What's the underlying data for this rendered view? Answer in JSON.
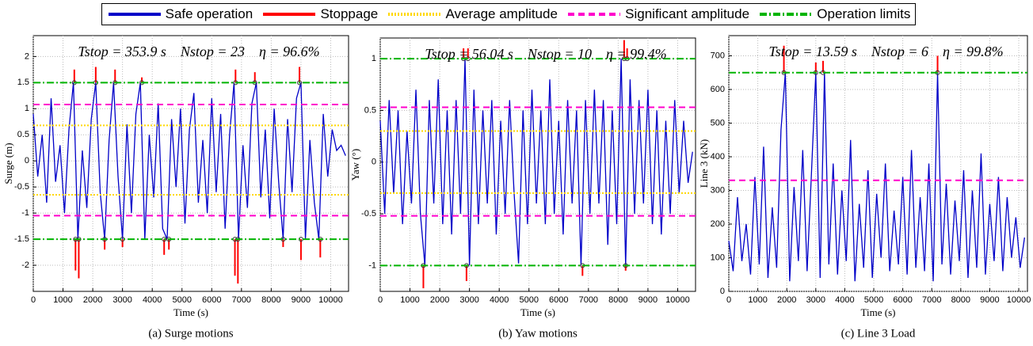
{
  "chart_data": [
    {
      "type": "line",
      "annotation": "Tstop = 353.9 s    Nstop = 23    η = 96.6%",
      "caption": "(a) Surge motions",
      "xlabel": "Time (s)",
      "ylabel": "Surge (m)",
      "xlim": [
        0,
        10600
      ],
      "xticks": [
        0,
        1000,
        2000,
        3000,
        4000,
        5000,
        6000,
        7000,
        8000,
        9000,
        10000
      ],
      "ylim": [
        -2.5,
        2.4
      ],
      "yticks": [
        -2,
        -1.5,
        -1,
        -0.5,
        0,
        0.5,
        1,
        1.5,
        2
      ],
      "grid": true,
      "series": [
        {
          "name": "Safe operation",
          "color": "#0000c8",
          "dash": "solid",
          "x": [
            0,
            150,
            300,
            450,
            600,
            750,
            900,
            1050,
            1200,
            1350,
            1500,
            1650,
            1800,
            1950,
            2100,
            2250,
            2400,
            2550,
            2700,
            2850,
            3000,
            3150,
            3300,
            3450,
            3600,
            3750,
            3900,
            4050,
            4200,
            4350,
            4500,
            4650,
            4800,
            4950,
            5100,
            5250,
            5400,
            5550,
            5700,
            5850,
            6000,
            6150,
            6300,
            6450,
            6600,
            6750,
            6900,
            7050,
            7200,
            7350,
            7500,
            7650,
            7800,
            7950,
            8100,
            8250,
            8400,
            8550,
            8700,
            8850,
            9000,
            9150,
            9300,
            9450,
            9600,
            9750,
            9900,
            10050,
            10200,
            10350,
            10500
          ],
          "values": [
            0.9,
            -0.3,
            0.5,
            -0.8,
            1.2,
            -0.4,
            0.3,
            -1.0,
            0.6,
            1.5,
            -1.5,
            0.2,
            -0.9,
            0.8,
            1.5,
            -0.6,
            -1.5,
            0.4,
            1.5,
            -0.3,
            -1.5,
            0.7,
            -1.0,
            0.9,
            1.5,
            -1.5,
            0.5,
            -0.7,
            1.1,
            -1.3,
            -1.5,
            0.8,
            -0.5,
            1.0,
            -1.2,
            0.6,
            1.3,
            -0.8,
            0.4,
            -1.0,
            1.2,
            -0.6,
            0.9,
            -1.3,
            0.5,
            1.5,
            -1.5,
            0.3,
            -0.9,
            1.1,
            1.5,
            -0.7,
            0.6,
            -1.1,
            1.0,
            -0.4,
            -1.5,
            0.8,
            -0.6,
            1.2,
            1.5,
            -1.5,
            0.4,
            -0.8,
            -1.5,
            0.9,
            -0.3,
            0.6,
            0.2,
            0.3,
            0.1
          ]
        },
        {
          "name": "Stoppage",
          "color": "#ff0000",
          "dash": "spike",
          "x": [
            1380,
            1420,
            1530,
            2100,
            2400,
            2750,
            3000,
            3650,
            4400,
            4560,
            6780,
            6800,
            6880,
            7450,
            8400,
            8950,
            9000,
            9650
          ],
          "values": [
            1.75,
            -2.1,
            -2.25,
            1.8,
            -1.7,
            1.75,
            -1.65,
            1.6,
            -1.8,
            -1.7,
            -2.2,
            1.75,
            -2.35,
            1.7,
            -1.65,
            1.8,
            -1.9,
            -1.85
          ]
        },
        {
          "name": "Average amplitude",
          "color": "#ffd800",
          "dash": "dotted",
          "values": [
            0.68,
            -0.65
          ]
        },
        {
          "name": "Significant amplitude",
          "color": "#ff00cc",
          "dash": "dashed",
          "values": [
            1.08,
            -1.05
          ]
        },
        {
          "name": "Operation limits",
          "color": "#00b400",
          "dash": "dashdot",
          "values": [
            1.5,
            -1.5
          ]
        }
      ]
    },
    {
      "type": "line",
      "annotation": "Tstop = 56.04 s    Nstop = 10    η = 99.4%",
      "caption": "(b) Yaw motions",
      "xlabel": "Time (s)",
      "ylabel": "Yaw (°)",
      "xlim": [
        0,
        10600
      ],
      "xticks": [
        0,
        1000,
        2000,
        3000,
        4000,
        5000,
        6000,
        7000,
        8000,
        9000,
        10000
      ],
      "ylim": [
        -1.25,
        1.2
      ],
      "yticks": [
        -1,
        -0.5,
        0,
        0.5,
        1
      ],
      "grid": true,
      "series": [
        {
          "name": "Safe operation",
          "color": "#0000c8",
          "dash": "solid",
          "x": [
            0,
            150,
            300,
            450,
            600,
            750,
            900,
            1050,
            1200,
            1350,
            1500,
            1650,
            1800,
            1950,
            2100,
            2250,
            2400,
            2550,
            2700,
            2850,
            3000,
            3150,
            3300,
            3450,
            3600,
            3750,
            3900,
            4050,
            4200,
            4350,
            4500,
            4650,
            4800,
            4950,
            5100,
            5250,
            5400,
            5550,
            5700,
            5850,
            6000,
            6150,
            6300,
            6450,
            6600,
            6750,
            6900,
            7050,
            7200,
            7350,
            7500,
            7650,
            7800,
            7950,
            8100,
            8250,
            8400,
            8550,
            8700,
            8850,
            9000,
            9150,
            9300,
            9450,
            9600,
            9750,
            9900,
            10050,
            10200,
            10350,
            10500
          ],
          "values": [
            0.4,
            -0.5,
            0.6,
            -0.3,
            0.5,
            -0.6,
            0.3,
            -0.4,
            0.7,
            -0.5,
            -1.0,
            0.6,
            -0.4,
            0.8,
            -0.6,
            0.5,
            -0.7,
            0.6,
            -0.5,
            1.0,
            -1.0,
            0.7,
            -0.6,
            0.5,
            -0.4,
            0.6,
            -0.7,
            0.4,
            -0.5,
            0.6,
            -0.3,
            -0.98,
            0.5,
            -0.6,
            0.7,
            -0.4,
            0.5,
            -0.6,
            0.8,
            -0.5,
            0.4,
            -0.7,
            0.6,
            -0.4,
            0.5,
            -1.0,
            0.6,
            -0.5,
            0.7,
            -0.4,
            0.6,
            -0.8,
            0.5,
            -0.6,
            1.0,
            -1.0,
            0.8,
            -0.5,
            0.6,
            -0.4,
            0.7,
            -0.6,
            0.5,
            -0.7,
            0.4,
            -0.5,
            0.6,
            -0.3,
            0.4,
            -0.2,
            0.1
          ]
        },
        {
          "name": "Stoppage",
          "color": "#ff0000",
          "dash": "spike",
          "x": [
            1450,
            2800,
            2900,
            2950,
            6800,
            8200,
            8250,
            8300
          ],
          "values": [
            -1.22,
            1.1,
            -1.15,
            1.1,
            -1.1,
            1.18,
            -1.05,
            1.1
          ]
        },
        {
          "name": "Average amplitude",
          "color": "#ffd800",
          "dash": "dotted",
          "values": [
            0.3,
            -0.3
          ]
        },
        {
          "name": "Significant amplitude",
          "color": "#ff00cc",
          "dash": "dashed",
          "values": [
            0.53,
            -0.52
          ]
        },
        {
          "name": "Operation limits",
          "color": "#00b400",
          "dash": "dashdot",
          "values": [
            1,
            -1
          ]
        }
      ]
    },
    {
      "type": "line",
      "annotation": "Tstop = 13.59 s    Nstop = 6    η = 99.8%",
      "caption": "(c) Line 3 Load",
      "xlabel": "Time (s)",
      "ylabel": "Line 3 (kN)",
      "xlim": [
        0,
        10300
      ],
      "xticks": [
        0,
        1000,
        2000,
        3000,
        4000,
        5000,
        6000,
        7000,
        8000,
        9000,
        10000
      ],
      "ylim": [
        0,
        760
      ],
      "yticks": [
        0,
        100,
        200,
        300,
        400,
        500,
        600,
        700
      ],
      "grid": true,
      "series": [
        {
          "name": "Safe operation",
          "color": "#0000c8",
          "dash": "solid",
          "x": [
            0,
            150,
            300,
            450,
            600,
            750,
            900,
            1050,
            1200,
            1350,
            1500,
            1650,
            1800,
            1950,
            2100,
            2250,
            2400,
            2550,
            2700,
            2850,
            3000,
            3150,
            3300,
            3450,
            3600,
            3750,
            3900,
            4050,
            4200,
            4350,
            4500,
            4650,
            4800,
            4950,
            5100,
            5250,
            5400,
            5550,
            5700,
            5850,
            6000,
            6150,
            6300,
            6450,
            6600,
            6750,
            6900,
            7050,
            7200,
            7350,
            7500,
            7650,
            7800,
            7950,
            8100,
            8250,
            8400,
            8550,
            8700,
            8850,
            9000,
            9150,
            9300,
            9450,
            9600,
            9750,
            9900,
            10050,
            10200
          ],
          "values": [
            150,
            60,
            280,
            90,
            200,
            50,
            340,
            80,
            430,
            40,
            250,
            70,
            480,
            650,
            30,
            310,
            90,
            420,
            60,
            350,
            650,
            40,
            650,
            80,
            380,
            50,
            300,
            90,
            450,
            30,
            260,
            70,
            360,
            40,
            290,
            100,
            380,
            60,
            240,
            80,
            340,
            50,
            420,
            70,
            280,
            60,
            380,
            30,
            650,
            80,
            320,
            50,
            270,
            90,
            360,
            40,
            300,
            70,
            410,
            50,
            260,
            90,
            340,
            60,
            280,
            100,
            220,
            70,
            160
          ]
        },
        {
          "name": "Stoppage",
          "color": "#ff0000",
          "dash": "spike",
          "x": [
            1900,
            3000,
            3250,
            7200
          ],
          "values": [
            730,
            680,
            685,
            700
          ]
        },
        {
          "name": "Significant amplitude",
          "color": "#ff00cc",
          "dash": "dashed",
          "values": [
            330
          ]
        },
        {
          "name": "Operation limits",
          "color": "#00b400",
          "dash": "dashdot",
          "values": [
            650
          ]
        }
      ]
    }
  ]
}
